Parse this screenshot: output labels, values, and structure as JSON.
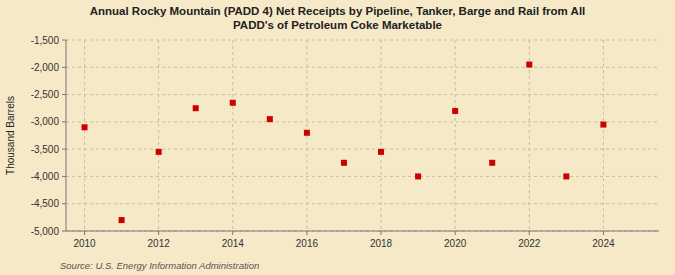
{
  "chart_data": {
    "type": "scatter",
    "title": "Annual Rocky Mountain (PADD 4) Net Receipts by Pipeline, Tanker, Barge and Rail from All\nPADD's of Petroleum Coke Marketable",
    "y_label": "Thousand Barrels",
    "annotations": [
      "Source: U.S. Energy Information Administration"
    ],
    "x": [
      2010,
      2011,
      2012,
      2013,
      2014,
      2015,
      2016,
      2017,
      2018,
      2019,
      2020,
      2021,
      2022,
      2023,
      2024
    ],
    "values": [
      -3100,
      -4800,
      -3550,
      -2750,
      -2650,
      -2950,
      -3200,
      -3750,
      -3550,
      -4000,
      -2800,
      -3750,
      -1950,
      -4000,
      -3050
    ],
    "color": "#cc0000",
    "marker": "square",
    "xlim": [
      2009.5,
      2025.5
    ],
    "xticks": [
      2010,
      2012,
      2014,
      2016,
      2018,
      2020,
      2022,
      2024
    ],
    "ylim": [
      -5000,
      -1500
    ],
    "yticks": [
      {
        "value": -5000,
        "label": "-5,000"
      },
      {
        "value": -4500,
        "label": "-4,500"
      },
      {
        "value": -4000,
        "label": "-4,000"
      },
      {
        "value": -3500,
        "label": "-3,500"
      },
      {
        "value": -3000,
        "label": "-3,000"
      },
      {
        "value": -2500,
        "label": "-2,500"
      },
      {
        "value": -2000,
        "label": "-2,000"
      },
      {
        "value": -1500,
        "label": "-1,500"
      }
    ],
    "grid": true
  }
}
